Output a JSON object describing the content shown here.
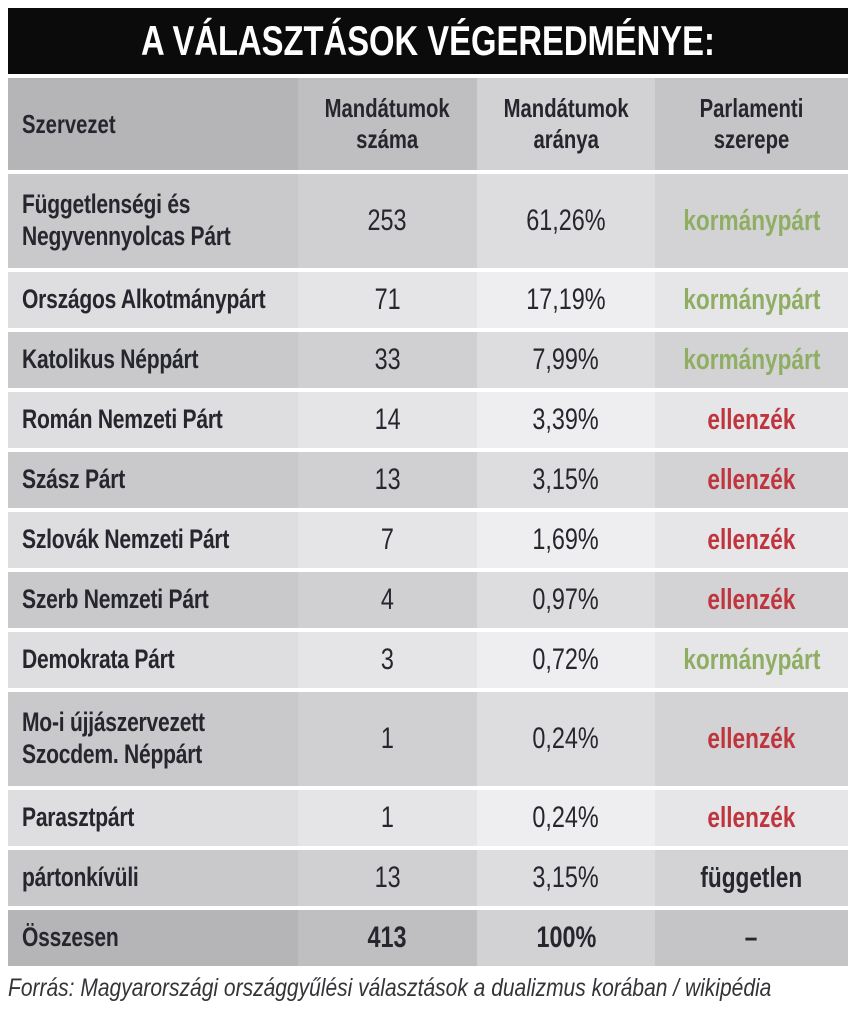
{
  "title": "A VÁLASZTÁSOK VÉGEREDMÉNYE:",
  "colors": {
    "title_bar": "#0b0b0b",
    "government_green": "#8fae63",
    "opposition_red": "#bf353e",
    "independent_black": "#26262e"
  },
  "chart_data": {
    "type": "table",
    "title": "A VÁLASZTÁSOK VÉGEREDMÉNYE:",
    "columns": [
      "Szervezet",
      "Mandátumok\nszáma",
      "Mandátumok\naránya",
      "Parlamenti\nszerepe"
    ],
    "rows": [
      {
        "szervezet": "Függetlenségi és\nNegyvennyolcas Párt",
        "mandatumok_szama": "253",
        "mandatumok_aranya": "61,26%",
        "parlamenti_szerepe": "kormánypárt",
        "role_type": "government",
        "tall": true
      },
      {
        "szervezet": "Országos Alkotmánypárt",
        "mandatumok_szama": "71",
        "mandatumok_aranya": "17,19%",
        "parlamenti_szerepe": "kormánypárt",
        "role_type": "government"
      },
      {
        "szervezet": "Katolikus Néppárt",
        "mandatumok_szama": "33",
        "mandatumok_aranya": "7,99%",
        "parlamenti_szerepe": "kormánypárt",
        "role_type": "government"
      },
      {
        "szervezet": "Román Nemzeti Párt",
        "mandatumok_szama": "14",
        "mandatumok_aranya": "3,39%",
        "parlamenti_szerepe": "ellenzék",
        "role_type": "opposition"
      },
      {
        "szervezet": "Szász Párt",
        "mandatumok_szama": "13",
        "mandatumok_aranya": "3,15%",
        "parlamenti_szerepe": "ellenzék",
        "role_type": "opposition"
      },
      {
        "szervezet": "Szlovák Nemzeti Párt",
        "mandatumok_szama": "7",
        "mandatumok_aranya": "1,69%",
        "parlamenti_szerepe": "ellenzék",
        "role_type": "opposition"
      },
      {
        "szervezet": "Szerb Nemzeti Párt",
        "mandatumok_szama": "4",
        "mandatumok_aranya": "0,97%",
        "parlamenti_szerepe": "ellenzék",
        "role_type": "opposition"
      },
      {
        "szervezet": "Demokrata Párt",
        "mandatumok_szama": "3",
        "mandatumok_aranya": "0,72%",
        "parlamenti_szerepe": "kormánypárt",
        "role_type": "government"
      },
      {
        "szervezet": "Mo-i újjászervezett\nSzocdem. Néppárt",
        "mandatumok_szama": "1",
        "mandatumok_aranya": "0,24%",
        "parlamenti_szerepe": "ellenzék",
        "role_type": "opposition",
        "tall": true
      },
      {
        "szervezet": "Parasztpárt",
        "mandatumok_szama": "1",
        "mandatumok_aranya": "0,24%",
        "parlamenti_szerepe": "ellenzék",
        "role_type": "opposition"
      },
      {
        "szervezet": "pártonkívüli",
        "mandatumok_szama": "13",
        "mandatumok_aranya": "3,15%",
        "parlamenti_szerepe": "független",
        "role_type": "independent"
      },
      {
        "szervezet": "Összesen",
        "mandatumok_szama": "413",
        "mandatumok_aranya": "100%",
        "parlamenti_szerepe": "–",
        "role_type": "none",
        "is_total": true
      }
    ],
    "source": "Forrás: Magyarországi országgyűlési választások a dualizmus korában / wikipédia"
  }
}
